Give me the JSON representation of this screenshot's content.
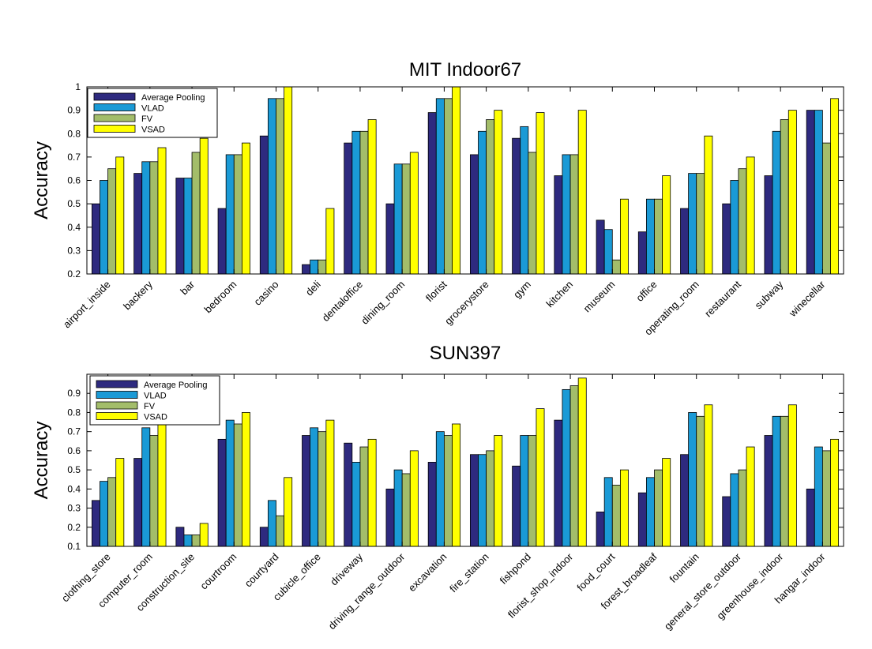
{
  "legend_labels": [
    "Average Pooling",
    "VLAD",
    "FV",
    "VSAD"
  ],
  "series_colors": [
    "#2e2a7f",
    "#1a9ad6",
    "#a3bd6a",
    "#ffff00"
  ],
  "chart_data": [
    {
      "type": "bar",
      "title": "MIT Indoor67",
      "xlabel": "",
      "ylabel": "Accuracy",
      "ylim": [
        0.2,
        1.0
      ],
      "yticks": [
        0.2,
        0.3,
        0.4,
        0.5,
        0.6,
        0.7,
        0.8,
        0.9,
        1
      ],
      "ytick_labels": [
        "0.2",
        "0.3",
        "0.4",
        "0.5",
        "0.6",
        "0.7",
        "0.8",
        "0.9",
        "1"
      ],
      "legend_position": "top-left",
      "categories": [
        "airport_inside",
        "backery",
        "bar",
        "bedroom",
        "casino",
        "deli",
        "dentaloffice",
        "dining_room",
        "florist",
        "grocerystore",
        "gym",
        "kitchen",
        "museum",
        "office",
        "operating_room",
        "restaurant",
        "subway",
        "winecellar"
      ],
      "series": [
        {
          "name": "Average Pooling",
          "values": [
            0.5,
            0.63,
            0.61,
            0.48,
            0.79,
            0.24,
            0.76,
            0.5,
            0.89,
            0.71,
            0.78,
            0.62,
            0.43,
            0.38,
            0.48,
            0.5,
            0.62,
            0.9
          ]
        },
        {
          "name": "VLAD",
          "values": [
            0.6,
            0.68,
            0.61,
            0.71,
            0.95,
            0.26,
            0.81,
            0.67,
            0.95,
            0.81,
            0.83,
            0.71,
            0.39,
            0.52,
            0.63,
            0.6,
            0.81,
            0.9
          ]
        },
        {
          "name": "FV",
          "values": [
            0.65,
            0.68,
            0.72,
            0.71,
            0.95,
            0.26,
            0.81,
            0.67,
            0.95,
            0.86,
            0.72,
            0.71,
            0.26,
            0.52,
            0.63,
            0.65,
            0.86,
            0.76
          ]
        },
        {
          "name": "VSAD",
          "values": [
            0.7,
            0.74,
            0.78,
            0.76,
            1.0,
            0.48,
            0.86,
            0.72,
            1.0,
            0.9,
            0.89,
            0.9,
            0.52,
            0.62,
            0.79,
            0.7,
            0.9,
            0.95
          ]
        }
      ]
    },
    {
      "type": "bar",
      "title": "SUN397",
      "xlabel": "",
      "ylabel": "Accuracy",
      "ylim": [
        0.1,
        1.0
      ],
      "yticks": [
        0.1,
        0.2,
        0.3,
        0.4,
        0.5,
        0.6,
        0.7,
        0.8,
        0.9
      ],
      "ytick_labels": [
        "0.1",
        "0.2",
        "0.3",
        "0.4",
        "0.5",
        "0.6",
        "0.7",
        "0.8",
        "0.9"
      ],
      "legend_position": "top-left",
      "categories": [
        "clothing_store",
        "computer_room",
        "construction_site",
        "courtroom",
        "courtyard",
        "cubicle_office",
        "driveway",
        "driving_range_outdoor",
        "excavation",
        "fire_station",
        "fishpond",
        "florist_shop_indoor",
        "food_court",
        "forest_broadleaf",
        "fountain",
        "general_store_outdoor",
        "greenhouse_indoor",
        "hangar_indoor"
      ],
      "series": [
        {
          "name": "Average Pooling",
          "values": [
            0.34,
            0.56,
            0.2,
            0.66,
            0.2,
            0.68,
            0.64,
            0.4,
            0.54,
            0.58,
            0.52,
            0.76,
            0.28,
            0.38,
            0.58,
            0.36,
            0.68,
            0.4
          ]
        },
        {
          "name": "VLAD",
          "values": [
            0.44,
            0.72,
            0.16,
            0.76,
            0.34,
            0.72,
            0.54,
            0.5,
            0.7,
            0.58,
            0.68,
            0.92,
            0.46,
            0.46,
            0.8,
            0.48,
            0.78,
            0.62
          ]
        },
        {
          "name": "FV",
          "values": [
            0.46,
            0.68,
            0.16,
            0.74,
            0.26,
            0.7,
            0.62,
            0.48,
            0.68,
            0.6,
            0.68,
            0.94,
            0.42,
            0.5,
            0.78,
            0.5,
            0.78,
            0.6
          ]
        },
        {
          "name": "VSAD",
          "values": [
            0.56,
            0.74,
            0.22,
            0.8,
            0.46,
            0.76,
            0.66,
            0.6,
            0.74,
            0.68,
            0.82,
            0.98,
            0.5,
            0.56,
            0.84,
            0.62,
            0.84,
            0.66
          ]
        }
      ]
    }
  ]
}
